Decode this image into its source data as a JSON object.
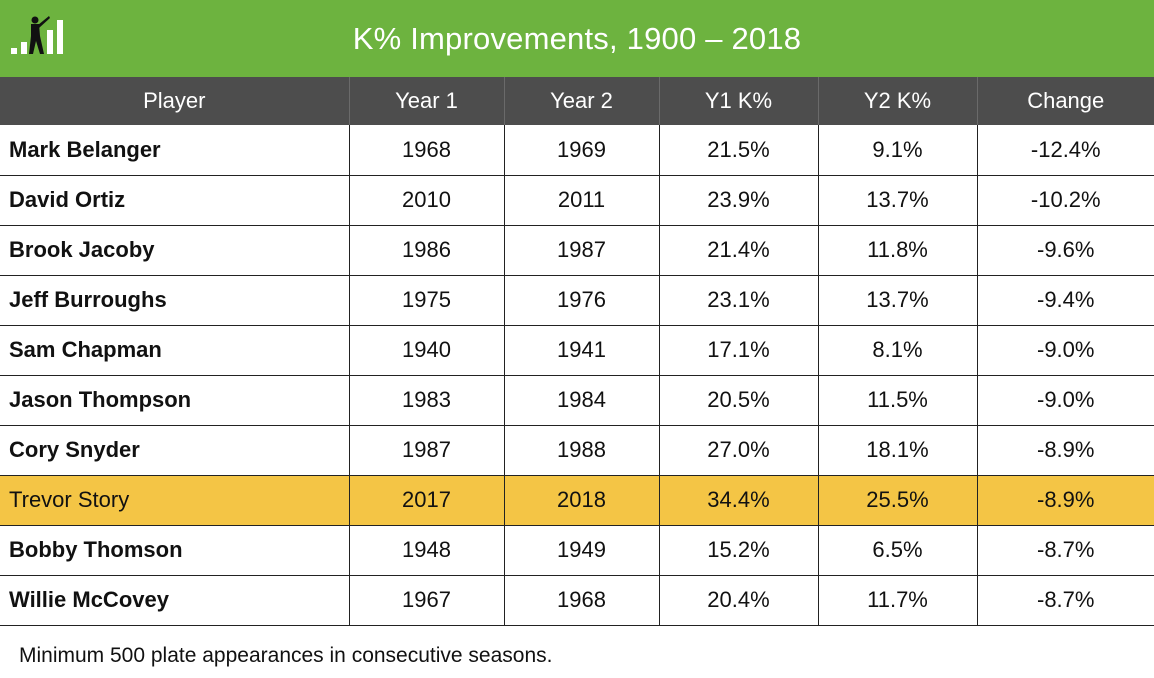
{
  "header": {
    "title": "K% Improvements, 1900 – 2018",
    "logo_icon": "batter-bars-icon",
    "bar_color": "#6db33f"
  },
  "table": {
    "columns": [
      "Player",
      "Year 1",
      "Year 2",
      "Y1 K%",
      "Y2 K%",
      "Change"
    ],
    "rows": [
      {
        "player": "Mark Belanger",
        "year1": "1968",
        "year2": "1969",
        "y1k": "21.5%",
        "y2k": "9.1%",
        "change": "-12.4%"
      },
      {
        "player": "David Ortiz",
        "year1": "2010",
        "year2": "2011",
        "y1k": "23.9%",
        "y2k": "13.7%",
        "change": "-10.2%"
      },
      {
        "player": "Brook Jacoby",
        "year1": "1986",
        "year2": "1987",
        "y1k": "21.4%",
        "y2k": "11.8%",
        "change": "-9.6%"
      },
      {
        "player": "Jeff Burroughs",
        "year1": "1975",
        "year2": "1976",
        "y1k": "23.1%",
        "y2k": "13.7%",
        "change": "-9.4%"
      },
      {
        "player": "Sam Chapman",
        "year1": "1940",
        "year2": "1941",
        "y1k": "17.1%",
        "y2k": "8.1%",
        "change": "-9.0%"
      },
      {
        "player": "Jason Thompson",
        "year1": "1983",
        "year2": "1984",
        "y1k": "20.5%",
        "y2k": "11.5%",
        "change": "-9.0%"
      },
      {
        "player": "Cory Snyder",
        "year1": "1987",
        "year2": "1988",
        "y1k": "27.0%",
        "y2k": "18.1%",
        "change": "-8.9%"
      },
      {
        "player": "Trevor Story",
        "year1": "2017",
        "year2": "2018",
        "y1k": "34.4%",
        "y2k": "25.5%",
        "change": "-8.9%",
        "highlight": true
      },
      {
        "player": "Bobby Thomson",
        "year1": "1948",
        "year2": "1949",
        "y1k": "15.2%",
        "y2k": "6.5%",
        "change": "-8.7%"
      },
      {
        "player": "Willie McCovey",
        "year1": "1967",
        "year2": "1968",
        "y1k": "20.4%",
        "y2k": "11.7%",
        "change": "-8.7%"
      }
    ],
    "header_color": "#4d4d4d",
    "highlight_color": "#f4c545"
  },
  "footnote": "Minimum 500 plate appearances in consecutive seasons."
}
